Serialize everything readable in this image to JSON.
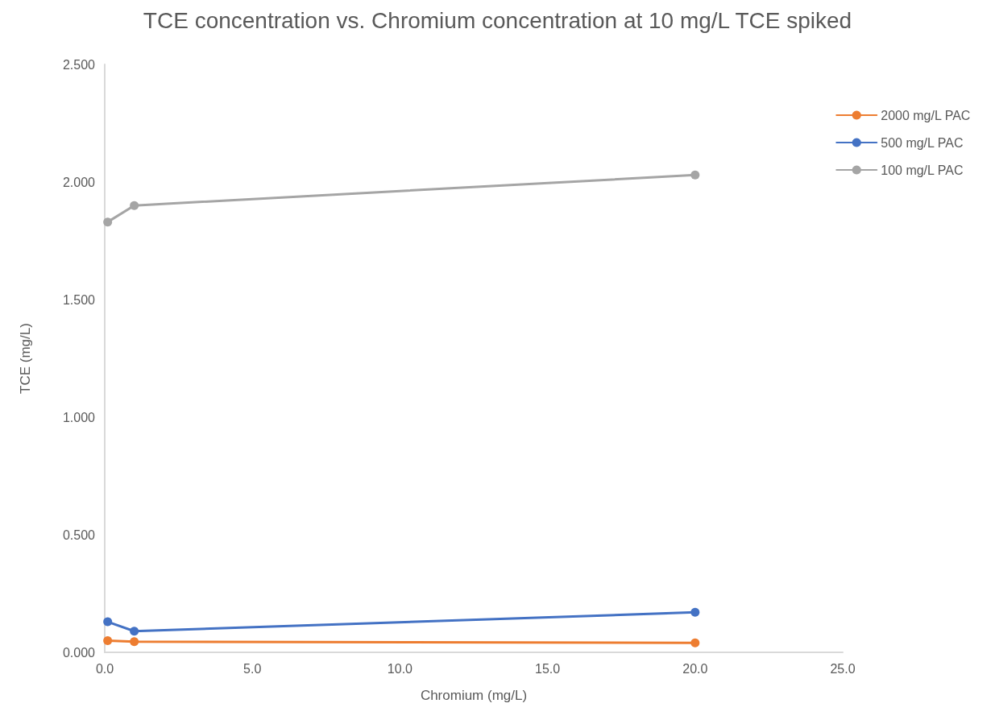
{
  "chart_data": {
    "type": "line",
    "title": "TCE concentration vs. Chromium concentration at 10 mg/L TCE spiked",
    "xlabel": "Chromium (mg/L)",
    "ylabel": "TCE (mg/L)",
    "x": [
      0.1,
      1,
      20
    ],
    "series": [
      {
        "name": "2000 mg/L PAC",
        "color": "#ed7d31",
        "values": [
          0.05,
          0.045,
          0.04
        ]
      },
      {
        "name": "500 mg/L PAC",
        "color": "#4472c4",
        "values": [
          0.13,
          0.09,
          0.17
        ]
      },
      {
        "name": "100 mg/L PAC",
        "color": "#a5a5a5",
        "values": [
          1.83,
          1.9,
          2.03
        ]
      }
    ],
    "xlim": [
      0,
      25
    ],
    "xticks": [
      {
        "value": 0,
        "label": "0.0"
      },
      {
        "value": 5,
        "label": "5.0"
      },
      {
        "value": 10,
        "label": "10.0"
      },
      {
        "value": 15,
        "label": "15.0"
      },
      {
        "value": 20,
        "label": "20.0"
      },
      {
        "value": 25,
        "label": "25.0"
      }
    ],
    "ylim": [
      0,
      2.5
    ],
    "yticks": [
      {
        "value": 0,
        "label": "0.000"
      },
      {
        "value": 0.5,
        "label": "0.500"
      },
      {
        "value": 1,
        "label": "1.000"
      },
      {
        "value": 1.5,
        "label": "1.500"
      },
      {
        "value": 2,
        "label": "2.000"
      },
      {
        "value": 2.5,
        "label": "2.500"
      }
    ],
    "grid": false,
    "legend": "top right",
    "marker": "circle",
    "line_style": "solid"
  }
}
